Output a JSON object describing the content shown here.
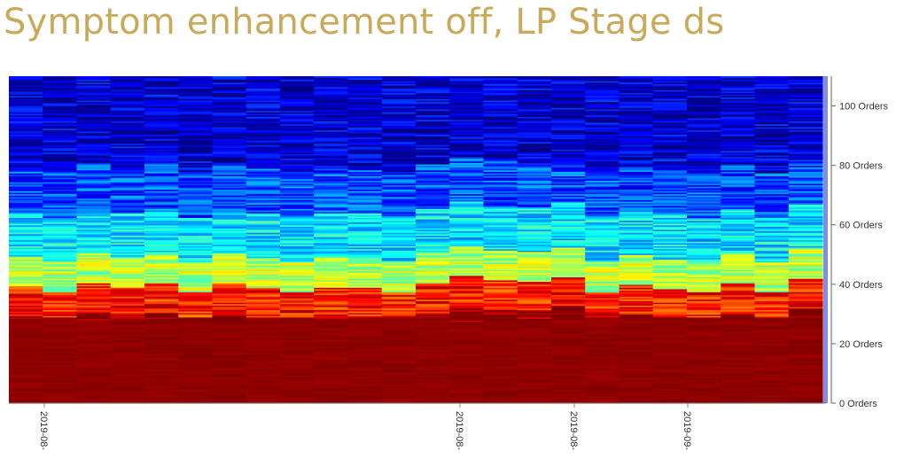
{
  "title": "Symptom enhancement off, LP Stage ds",
  "chart_data": {
    "type": "heatmap",
    "title": "Symptom enhancement off, LP Stage ds",
    "colormap": "jet",
    "y_axis": {
      "ticks": [
        0,
        20,
        40,
        60,
        80,
        100
      ],
      "tick_labels": [
        "0 Orders",
        "20 Orders",
        "40 Orders",
        "60 Orders",
        "80 Orders",
        "100 Orders"
      ],
      "range": [
        0,
        110
      ],
      "position": "right"
    },
    "x_axis": {
      "tick_labels": [
        "2019-08-",
        "2019-08-",
        "2019-08-",
        "2019-09-"
      ],
      "label_orientation": "vertical",
      "column_count": 24
    },
    "value_bands": [
      {
        "order_range": [
          0,
          30
        ],
        "level": 1.0
      },
      {
        "order_range": [
          30,
          40
        ],
        "level": 0.85
      },
      {
        "order_range": [
          40,
          50
        ],
        "level": 0.55
      },
      {
        "order_range": [
          50,
          65
        ],
        "level": 0.35
      },
      {
        "order_range": [
          65,
          80
        ],
        "level": 0.2
      },
      {
        "order_range": [
          80,
          110
        ],
        "level": 0.08
      }
    ]
  }
}
